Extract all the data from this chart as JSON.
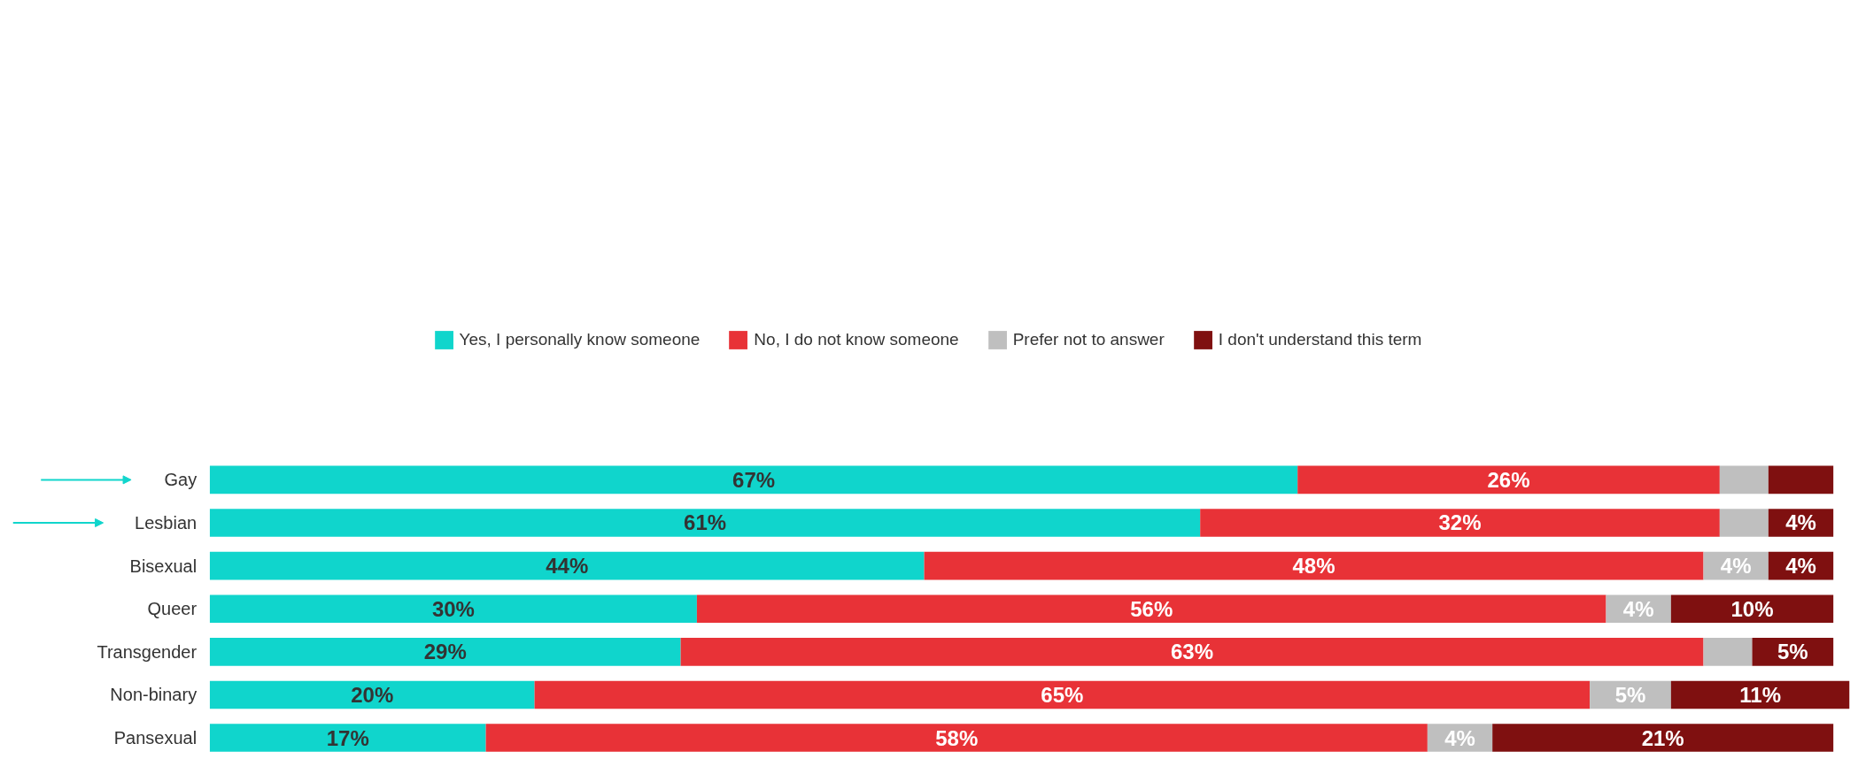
{
  "chart_data": {
    "type": "bar",
    "orientation": "horizontal",
    "stacked": true,
    "legend": "top",
    "grid": false,
    "tick_labels": "y",
    "categories": [
      "Gay",
      "Lesbian",
      "Bisexual",
      "Queer",
      "Transgender",
      "Non-binary",
      "Pansexual"
    ],
    "series": [
      {
        "name": "Yes, I personally know someone",
        "color": "#10d5cc",
        "values": [
          67,
          61,
          44,
          30,
          29,
          20,
          17
        ],
        "value_labels": [
          "67%",
          "61%",
          "44%",
          "30%",
          "29%",
          "20%",
          "17%"
        ]
      },
      {
        "name": "No, I do not know someone",
        "color": "#e83237",
        "values": [
          26,
          32,
          48,
          56,
          63,
          65,
          58
        ],
        "value_labels": [
          "26%",
          "32%",
          "48%",
          "56%",
          "63%",
          "65%",
          "58%"
        ]
      },
      {
        "name": "Prefer not to answer",
        "color": "#bfbfbf",
        "values": [
          3,
          3,
          4,
          4,
          3,
          5,
          4
        ],
        "value_labels": [
          null,
          null,
          "4%",
          "4%",
          null,
          "5%",
          "4%"
        ]
      },
      {
        "name": "I don't understand this term",
        "color": "#7f1010",
        "values": [
          4,
          4,
          4,
          10,
          5,
          11,
          21
        ],
        "value_labels": [
          null,
          "4%",
          "4%",
          "10%",
          "5%",
          "11%",
          "21%"
        ]
      }
    ]
  }
}
